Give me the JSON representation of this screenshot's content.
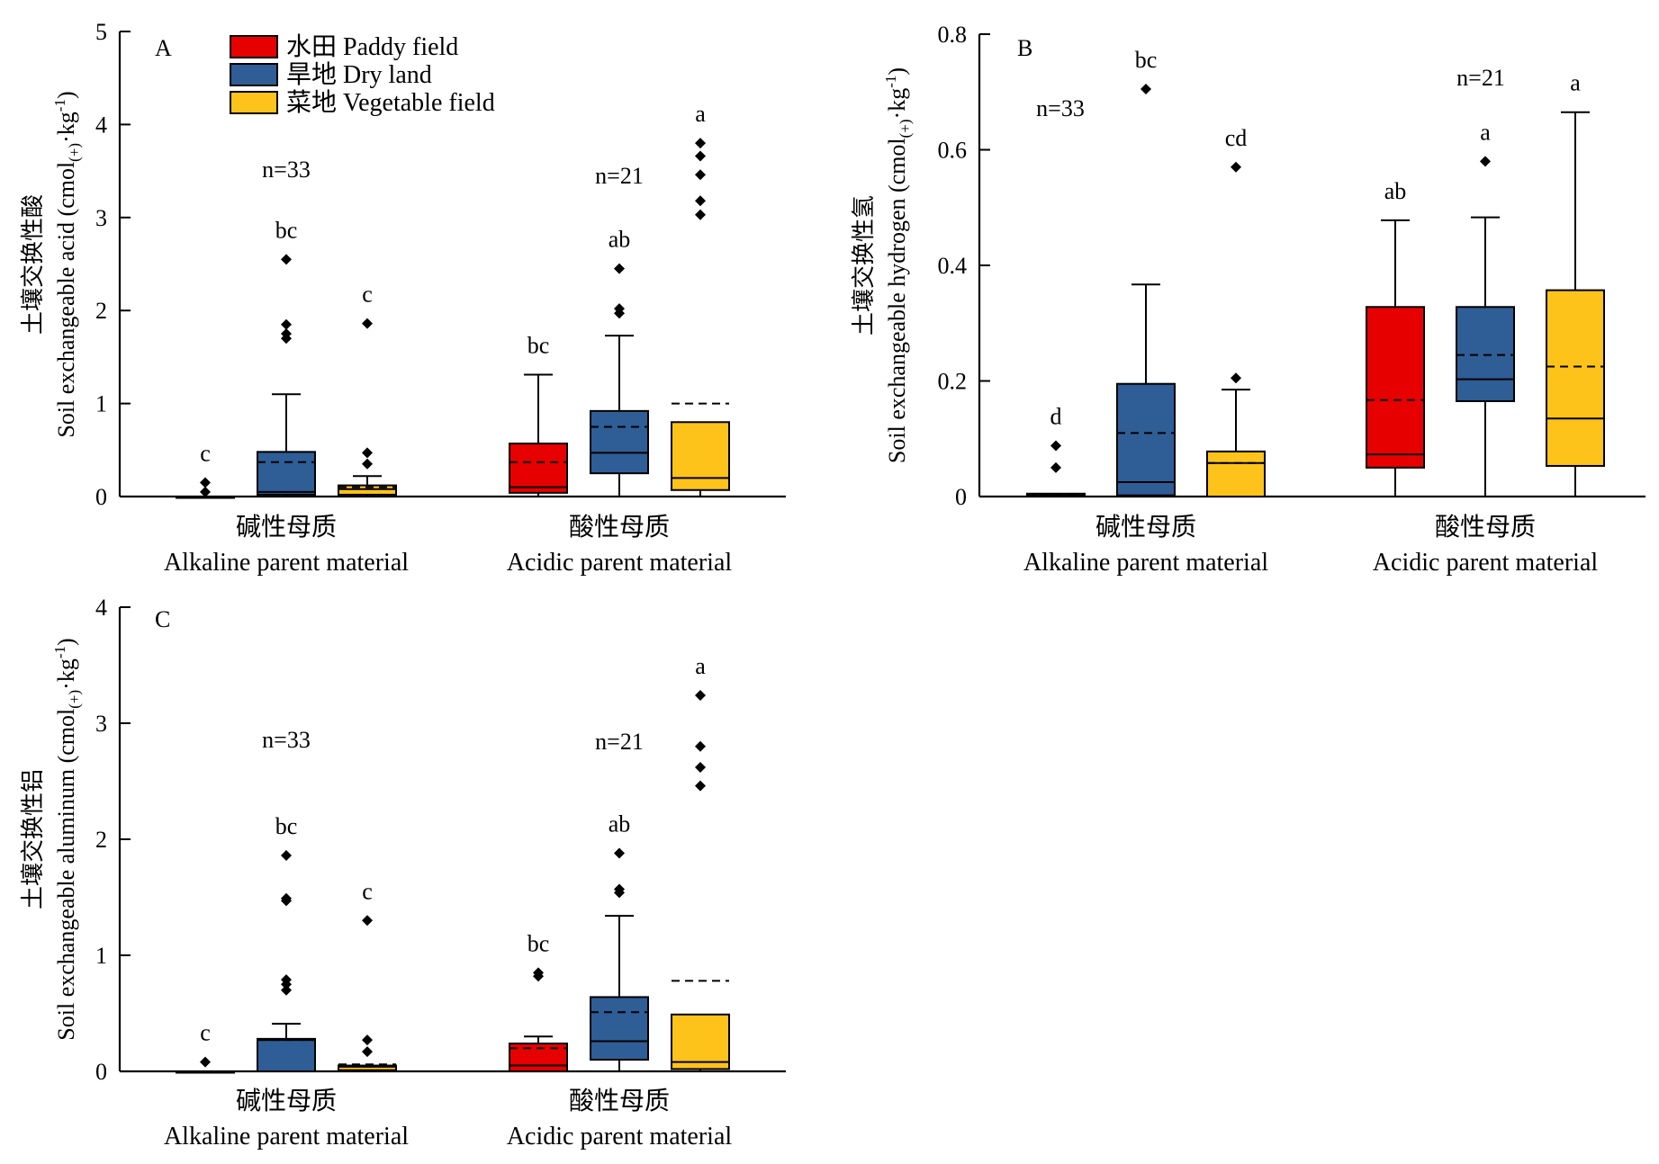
{
  "colors": {
    "paddy": "#e60000",
    "dry": "#2f5d96",
    "vegetable": "#fec31b",
    "line": "#000000"
  },
  "legend": [
    {
      "key": "paddy",
      "label": "水田 Paddy field"
    },
    {
      "key": "dry",
      "label": "旱地 Dry land"
    },
    {
      "key": "vegetable",
      "label": "菜地 Vegetable field"
    }
  ],
  "chart_data": [
    {
      "panel": "A",
      "type": "box",
      "ylabel_cn": "土壤交换性酸",
      "ylabel_en": "Soil exchangeable acid (cmol(+)·kg-1)",
      "ylim": [
        0,
        5
      ],
      "yticks": [
        "0",
        "1",
        "2",
        "3",
        "4",
        "5"
      ],
      "categories": [
        {
          "cn": "碱性母质",
          "en": "Alkaline parent material",
          "n": "n=33"
        },
        {
          "cn": "酸性母质",
          "en": "Acidic parent material",
          "n": "n=21"
        }
      ],
      "boxes": [
        {
          "category": 0,
          "series": "paddy",
          "min": 0,
          "q1": 0,
          "median": 0,
          "mean": 0.0,
          "q3": 0,
          "max": 0,
          "outliers": [
            0.05,
            0.15
          ],
          "letter": "c"
        },
        {
          "category": 0,
          "series": "dry",
          "min": 0,
          "q1": 0.02,
          "median": 0.05,
          "mean": 0.37,
          "q3": 0.48,
          "max": 1.1,
          "outliers": [
            1.7,
            1.75,
            1.85,
            2.55
          ],
          "letter": "bc"
        },
        {
          "category": 0,
          "series": "vegetable",
          "min": 0,
          "q1": 0.02,
          "median": 0.08,
          "mean": 0.1,
          "q3": 0.12,
          "max": 0.22,
          "outliers": [
            0.35,
            0.47,
            1.86
          ],
          "letter": "c"
        },
        {
          "category": 1,
          "series": "paddy",
          "min": 0,
          "q1": 0.04,
          "median": 0.1,
          "mean": 0.37,
          "q3": 0.57,
          "max": 1.31,
          "outliers": [],
          "letter": "bc"
        },
        {
          "category": 1,
          "series": "dry",
          "min": 0,
          "q1": 0.25,
          "median": 0.47,
          "mean": 0.75,
          "q3": 0.92,
          "max": 1.73,
          "outliers": [
            1.97,
            2.02,
            2.45
          ],
          "letter": "ab"
        },
        {
          "category": 1,
          "series": "vegetable",
          "min": 0,
          "q1": 0.07,
          "median": 0.2,
          "mean": 1.0,
          "q3": 0.8,
          "max": 0.8,
          "outliers": [
            3.03,
            3.18,
            3.46,
            3.66,
            3.8
          ],
          "letter": "a"
        }
      ]
    },
    {
      "panel": "B",
      "type": "box",
      "ylabel_cn": "土壤交换性氢",
      "ylabel_en": "Soil exchangeable hydrogen (cmol(+)·kg-1)",
      "ylim": [
        0,
        0.8
      ],
      "yticks": [
        "0",
        "0.2",
        "0.4",
        "0.6",
        "0.8"
      ],
      "categories": [
        {
          "cn": "碱性母质",
          "en": "Alkaline parent material",
          "n": "n=33"
        },
        {
          "cn": "酸性母质",
          "en": "Acidic parent material",
          "n": "n=21"
        }
      ],
      "boxes": [
        {
          "category": 0,
          "series": "paddy",
          "min": 0,
          "q1": 0,
          "median": 0.002,
          "mean": 0.004,
          "q3": 0.005,
          "max": 0.005,
          "outliers": [
            0.05,
            0.088
          ],
          "letter": "d"
        },
        {
          "category": 0,
          "series": "dry",
          "min": 0,
          "q1": 0.002,
          "median": 0.025,
          "mean": 0.11,
          "q3": 0.195,
          "max": 0.367,
          "outliers": [
            0.705
          ],
          "letter": "bc"
        },
        {
          "category": 0,
          "series": "vegetable",
          "min": 0,
          "q1": 0,
          "median": 0.058,
          "mean": 0.058,
          "q3": 0.078,
          "max": 0.185,
          "outliers": [
            0.205,
            0.57
          ],
          "letter": "cd"
        },
        {
          "category": 1,
          "series": "paddy",
          "min": 0,
          "q1": 0.05,
          "median": 0.073,
          "mean": 0.167,
          "q3": 0.328,
          "max": 0.478,
          "outliers": [],
          "letter": "ab"
        },
        {
          "category": 1,
          "series": "dry",
          "min": 0,
          "q1": 0.165,
          "median": 0.203,
          "mean": 0.245,
          "q3": 0.328,
          "max": 0.483,
          "outliers": [
            0.58
          ],
          "letter": "a"
        },
        {
          "category": 1,
          "series": "vegetable",
          "min": 0,
          "q1": 0.053,
          "median": 0.135,
          "mean": 0.225,
          "q3": 0.357,
          "max": 0.665,
          "outliers": [],
          "letter": "a"
        }
      ]
    },
    {
      "panel": "C",
      "type": "box",
      "ylabel_cn": "土壤交换性铝",
      "ylabel_en": "Soil exchangeable aluminum (cmol(+)·kg-1)",
      "ylim": [
        0,
        4
      ],
      "yticks": [
        "0",
        "1",
        "2",
        "3",
        "4"
      ],
      "categories": [
        {
          "cn": "碱性母质",
          "en": "Alkaline parent material",
          "n": "n=33"
        },
        {
          "cn": "酸性母质",
          "en": "Acidic parent material",
          "n": "n=21"
        }
      ],
      "boxes": [
        {
          "category": 0,
          "series": "paddy",
          "min": 0,
          "q1": 0,
          "median": 0,
          "mean": 0.0,
          "q3": 0,
          "max": 0,
          "outliers": [
            0.08
          ],
          "letter": "c"
        },
        {
          "category": 0,
          "series": "dry",
          "min": 0,
          "q1": 0.0,
          "median": 0.27,
          "mean": 0.27,
          "q3": 0.28,
          "max": 0.41,
          "outliers": [
            0.7,
            0.75,
            0.79,
            1.47,
            1.49,
            1.86
          ],
          "letter": "bc"
        },
        {
          "category": 0,
          "series": "vegetable",
          "min": 0,
          "q1": 0.01,
          "median": 0.04,
          "mean": 0.06,
          "q3": 0.05,
          "max": 0.05,
          "outliers": [
            0.17,
            0.27,
            1.3
          ],
          "letter": "c"
        },
        {
          "category": 1,
          "series": "paddy",
          "min": 0,
          "q1": 0.0,
          "median": 0.05,
          "mean": 0.2,
          "q3": 0.24,
          "max": 0.3,
          "outliers": [
            0.82,
            0.85
          ],
          "letter": "bc"
        },
        {
          "category": 1,
          "series": "dry",
          "min": 0,
          "q1": 0.1,
          "median": 0.26,
          "mean": 0.51,
          "q3": 0.64,
          "max": 1.34,
          "outliers": [
            1.54,
            1.57,
            1.88
          ],
          "letter": "ab"
        },
        {
          "category": 1,
          "series": "vegetable",
          "min": 0,
          "q1": 0.02,
          "median": 0.08,
          "mean": 0.78,
          "q3": 0.49,
          "max": 0.49,
          "outliers": [
            2.46,
            2.62,
            2.8,
            3.24
          ],
          "letter": "a"
        }
      ]
    }
  ]
}
